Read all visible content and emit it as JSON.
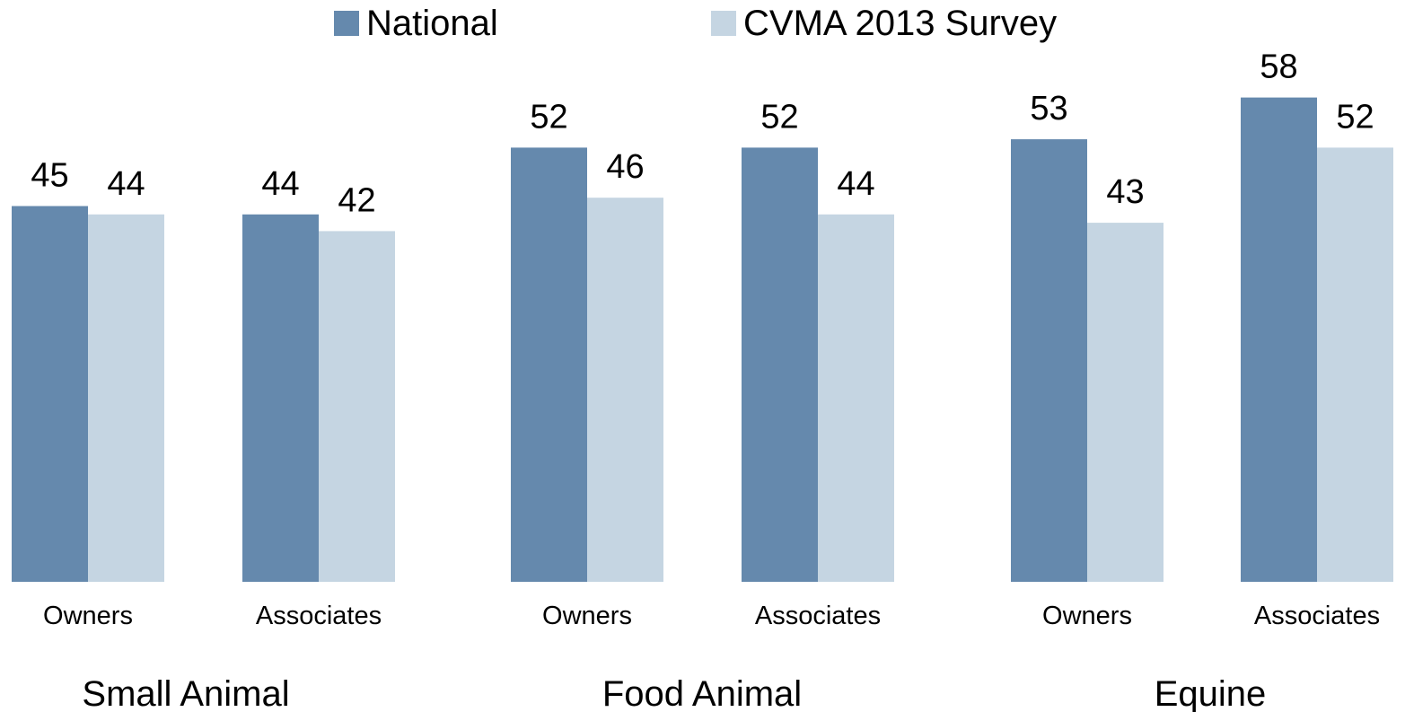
{
  "chart_data": {
    "type": "bar",
    "title": "",
    "xlabel": "",
    "ylabel": "",
    "ylim": [
      0,
      65
    ],
    "grid": false,
    "legend_position": "top",
    "colors": {
      "National": "#6589ad",
      "CVMA 2013 Survey": "#c5d5e2"
    },
    "series": [
      {
        "name": "National",
        "values": [
          45,
          44,
          52,
          52,
          53,
          58
        ]
      },
      {
        "name": "CVMA 2013 Survey",
        "values": [
          44,
          42,
          46,
          44,
          43,
          52
        ]
      }
    ],
    "categories": [
      "Owners",
      "Associates",
      "Owners",
      "Associates",
      "Owners",
      "Associates"
    ],
    "groups": [
      "Small Animal",
      "Food Animal",
      "Equine"
    ]
  }
}
